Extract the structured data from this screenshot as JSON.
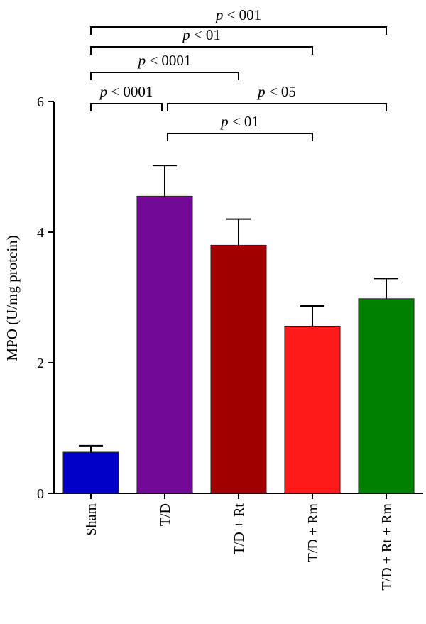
{
  "chart_data": {
    "type": "bar",
    "title": "",
    "xlabel": "",
    "ylabel": "MPO (U/mg protein)",
    "ylim": [
      0,
      6
    ],
    "yticks": [
      0,
      2,
      4,
      6
    ],
    "categories": [
      "Sham",
      "T/D",
      "T/D + Rt",
      "T/D + Rm",
      "T/D + Rt + Rm"
    ],
    "values": [
      0.63,
      4.55,
      3.8,
      2.56,
      2.98
    ],
    "errors": [
      0.1,
      0.47,
      0.4,
      0.31,
      0.31
    ],
    "colors": [
      "#0000c8",
      "#730a96",
      "#a00000",
      "#ff1a1a",
      "#008000"
    ],
    "grid": false,
    "significance": [
      {
        "from": 0,
        "to": 4,
        "label": "p < 001"
      },
      {
        "from": 0,
        "to": 3,
        "label": "p < 01"
      },
      {
        "from": 0,
        "to": 2,
        "label": "p < 0001"
      },
      {
        "from": 0,
        "to": 1,
        "label": "p < 0001"
      },
      {
        "from": 1,
        "to": 4,
        "label": "p < 05"
      },
      {
        "from": 1,
        "to": 3,
        "label": "p < 01"
      }
    ]
  }
}
